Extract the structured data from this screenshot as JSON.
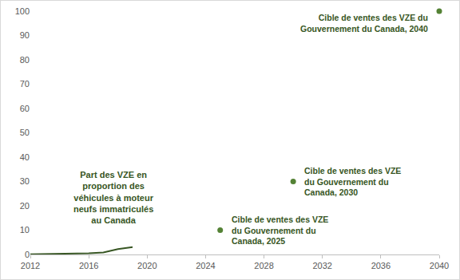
{
  "chart_data": {
    "type": "line",
    "xlim": [
      2012,
      2040
    ],
    "xticks": [
      2012,
      2016,
      2020,
      2024,
      2028,
      2032,
      2036,
      2040
    ],
    "ylim": [
      0,
      100
    ],
    "yticks": [
      0,
      10,
      20,
      30,
      40,
      50,
      60,
      70,
      80,
      90,
      100
    ],
    "grid": false,
    "series": [
      {
        "type": "line",
        "color": "#375623",
        "x": [
          2012,
          2013,
          2014,
          2015,
          2016,
          2017,
          2018,
          2019
        ],
        "values": [
          0.1,
          0.15,
          0.2,
          0.3,
          0.5,
          0.8,
          2.2,
          3.0
        ],
        "label_lines": [
          "Part des VZE en",
          "proportion des",
          "véhicules à moteur",
          "neufs immatriculés",
          "au Canada"
        ]
      },
      {
        "type": "scatter",
        "marker": "circle",
        "color": "#548235",
        "x": [
          2025,
          2030,
          2040
        ],
        "values": [
          10,
          30,
          100
        ],
        "point_label_lines": [
          [
            "Cible de ventes des VZE",
            "du Gouvernement du",
            "Canada, 2025"
          ],
          [
            "Cible de ventes des VZE",
            "du Gouvernement du",
            "Canada, 2030"
          ],
          [
            "Cible de ventes des VZE du",
            "Gouvernement du Canada, 2040"
          ]
        ]
      }
    ]
  }
}
